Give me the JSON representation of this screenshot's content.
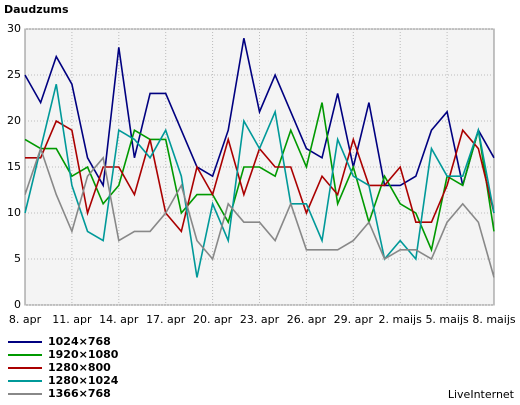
{
  "chart_data": {
    "type": "line",
    "ylabel": "Daudzums",
    "categories": [
      "8. apr",
      null,
      null,
      "11. apr",
      null,
      null,
      "14. apr",
      null,
      null,
      "17. apr",
      null,
      null,
      "20. apr",
      null,
      null,
      "23. apr",
      null,
      null,
      "26. apr",
      null,
      null,
      "29. apr",
      null,
      null,
      "2. maijs",
      null,
      null,
      "5. maijs",
      null,
      null,
      "8. maijs"
    ],
    "ylim": [
      0,
      30
    ],
    "yticks": [
      0,
      5,
      10,
      15,
      20,
      25,
      30
    ],
    "grid": true,
    "series": [
      {
        "name": "1024×768",
        "color": "#000080",
        "values": [
          25,
          22,
          27,
          24,
          16,
          13,
          28,
          16,
          23,
          23,
          19,
          15,
          14,
          19,
          29,
          21,
          25,
          21,
          17,
          16,
          23,
          15,
          22,
          13,
          13,
          14,
          19,
          21,
          13,
          19,
          16
        ]
      },
      {
        "name": "1920×1080",
        "color": "#009900",
        "values": [
          18,
          17,
          17,
          14,
          15,
          11,
          13,
          19,
          18,
          18,
          10,
          12,
          12,
          9,
          15,
          15,
          14,
          19,
          15,
          22,
          11,
          15,
          9,
          14,
          11,
          10,
          6,
          14,
          13,
          19,
          8
        ]
      },
      {
        "name": "1280×800",
        "color": "#aa0000",
        "values": [
          16,
          16,
          20,
          19,
          10,
          15,
          15,
          12,
          18,
          10,
          8,
          15,
          12,
          18,
          12,
          17,
          15,
          15,
          10,
          14,
          12,
          18,
          13,
          13,
          15,
          9,
          9,
          13,
          19,
          17,
          10
        ]
      },
      {
        "name": "1280×1024",
        "color": "#009999",
        "values": [
          10,
          17,
          24,
          13,
          8,
          7,
          19,
          18,
          16,
          19,
          14,
          3,
          11,
          7,
          20,
          17,
          21,
          11,
          11,
          7,
          18,
          14,
          13,
          5,
          7,
          5,
          17,
          14,
          14,
          19,
          10
        ]
      },
      {
        "name": "1366×768",
        "color": "#888888",
        "values": [
          12,
          17,
          12,
          8,
          14,
          16,
          7,
          8,
          8,
          10,
          13,
          7,
          5,
          11,
          9,
          9,
          7,
          11,
          6,
          6,
          6,
          7,
          9,
          5,
          6,
          6,
          5,
          9,
          11,
          9,
          3
        ]
      }
    ],
    "credit": "LiveInternet"
  }
}
